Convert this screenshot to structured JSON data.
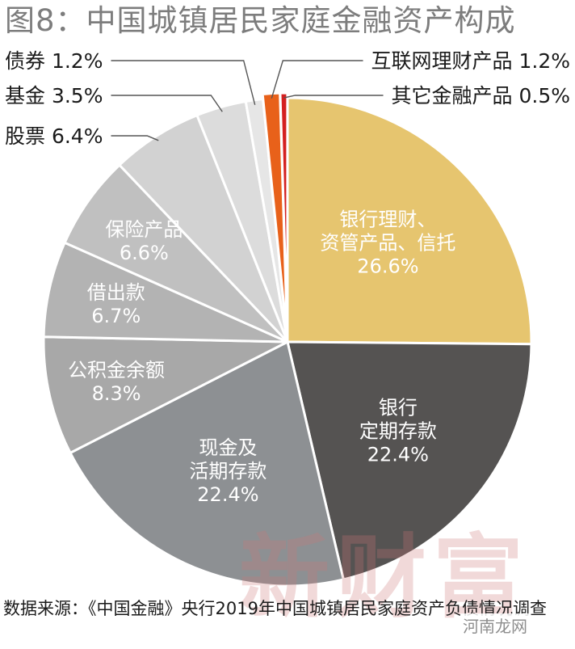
{
  "title": "图8：中国城镇居民家庭金融资产构成",
  "source": "数据来源：《中国金融》央行2019年中国城镇居民家庭资产负债情况调查",
  "watermark": "新财富",
  "badge": "河南龙网",
  "chart_data": {
    "type": "pie",
    "unit": "%",
    "slices": [
      {
        "name": "银行理财、资管产品、信托",
        "lines": [
          "银行理财、",
          "资管产品、信托"
        ],
        "value": 26.6,
        "label": "26.6%",
        "color": "#e6c56f",
        "text_color": "#ffffff",
        "label_pos": "inside"
      },
      {
        "name": "银行定期存款",
        "lines": [
          "银行",
          "定期存款"
        ],
        "value": 22.4,
        "label": "22.4%",
        "color": "#555352",
        "text_color": "#ffffff",
        "label_pos": "inside"
      },
      {
        "name": "现金及活期存款",
        "lines": [
          "现金及",
          "活期存款"
        ],
        "value": 22.4,
        "label": "22.4%",
        "color": "#8d9093",
        "text_color": "#ffffff",
        "label_pos": "inside"
      },
      {
        "name": "公积金余额",
        "lines": [
          "公积金余额"
        ],
        "value": 8.3,
        "label": "8.3%",
        "color": "#a8a8a8",
        "text_color": "#ffffff",
        "label_pos": "inside"
      },
      {
        "name": "借出款",
        "lines": [
          "借出款"
        ],
        "value": 6.7,
        "label": "6.7%",
        "color": "#b3b3b3",
        "text_color": "#ffffff",
        "label_pos": "inside"
      },
      {
        "name": "保险产品",
        "lines": [
          "保险产品"
        ],
        "value": 6.6,
        "label": "6.6%",
        "color": "#c0c0c0",
        "text_color": "#ffffff",
        "label_pos": "inside"
      },
      {
        "name": "股票",
        "lines": [
          "股票"
        ],
        "value": 6.4,
        "label": "6.4%",
        "color": "#d2d2d2",
        "text_color": "#1a1a1a",
        "label_pos": "outside-left"
      },
      {
        "name": "基金",
        "lines": [
          "基金"
        ],
        "value": 3.5,
        "label": "3.5%",
        "color": "#dcdcdc",
        "text_color": "#1a1a1a",
        "label_pos": "outside-left"
      },
      {
        "name": "债券",
        "lines": [
          "债券"
        ],
        "value": 1.2,
        "label": "1.2%",
        "color": "#e6e6e6",
        "text_color": "#1a1a1a",
        "label_pos": "outside-left"
      },
      {
        "name": "互联网理财产品",
        "lines": [
          "互联网理财产品"
        ],
        "value": 1.2,
        "label": "1.2%",
        "color": "#e8611a",
        "text_color": "#1a1a1a",
        "label_pos": "outside-right"
      },
      {
        "name": "其它金融产品",
        "lines": [
          "其它金融产品"
        ],
        "value": 0.5,
        "label": "0.5%",
        "color": "#d42020",
        "text_color": "#1a1a1a",
        "label_pos": "outside-right"
      }
    ]
  }
}
